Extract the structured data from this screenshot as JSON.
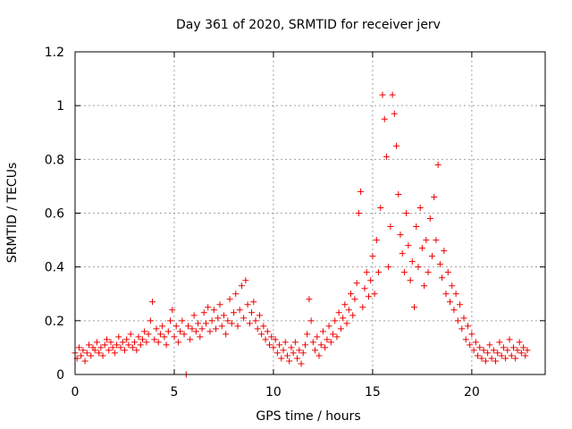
{
  "chart_data": {
    "type": "scatter",
    "title": "Day 361 of 2020, SRMTID for receiver jerv",
    "xlabel": "GPS time / hours",
    "ylabel": "SRMTID / TECUs",
    "xlim": [
      0,
      23.7
    ],
    "ylim": [
      0,
      1.2
    ],
    "x_ticks": [
      0,
      5,
      10,
      15,
      20
    ],
    "x_tick_labels": [
      "0",
      "5",
      "10",
      "15",
      "20"
    ],
    "y_ticks": [
      0,
      0.2,
      0.4,
      0.6,
      0.8,
      1.0,
      1.2
    ],
    "y_tick_labels": [
      "0",
      "0.2",
      "0.4",
      "0.6",
      "0.8",
      "1",
      "1.2"
    ],
    "grid": true,
    "marker": "+",
    "color": "#ee0000",
    "series": [
      {
        "name": "SRMTID",
        "points": [
          [
            0.0,
            0.08
          ],
          [
            0.1,
            0.06
          ],
          [
            0.2,
            0.1
          ],
          [
            0.3,
            0.07
          ],
          [
            0.4,
            0.09
          ],
          [
            0.5,
            0.05
          ],
          [
            0.6,
            0.08
          ],
          [
            0.7,
            0.11
          ],
          [
            0.8,
            0.07
          ],
          [
            0.9,
            0.1
          ],
          [
            1.0,
            0.09
          ],
          [
            1.1,
            0.12
          ],
          [
            1.2,
            0.08
          ],
          [
            1.3,
            0.1
          ],
          [
            1.4,
            0.07
          ],
          [
            1.5,
            0.11
          ],
          [
            1.6,
            0.13
          ],
          [
            1.7,
            0.09
          ],
          [
            1.8,
            0.12
          ],
          [
            1.9,
            0.1
          ],
          [
            2.0,
            0.08
          ],
          [
            2.1,
            0.11
          ],
          [
            2.2,
            0.14
          ],
          [
            2.3,
            0.1
          ],
          [
            2.4,
            0.12
          ],
          [
            2.5,
            0.09
          ],
          [
            2.6,
            0.13
          ],
          [
            2.7,
            0.11
          ],
          [
            2.8,
            0.15
          ],
          [
            2.9,
            0.1
          ],
          [
            3.0,
            0.12
          ],
          [
            3.1,
            0.09
          ],
          [
            3.2,
            0.14
          ],
          [
            3.3,
            0.11
          ],
          [
            3.4,
            0.13
          ],
          [
            3.5,
            0.16
          ],
          [
            3.6,
            0.12
          ],
          [
            3.7,
            0.15
          ],
          [
            3.8,
            0.2
          ],
          [
            3.9,
            0.27
          ],
          [
            4.0,
            0.13
          ],
          [
            4.1,
            0.17
          ],
          [
            4.2,
            0.12
          ],
          [
            4.3,
            0.15
          ],
          [
            4.4,
            0.18
          ],
          [
            4.5,
            0.14
          ],
          [
            4.6,
            0.11
          ],
          [
            4.7,
            0.16
          ],
          [
            4.8,
            0.2
          ],
          [
            4.9,
            0.24
          ],
          [
            5.0,
            0.14
          ],
          [
            5.1,
            0.18
          ],
          [
            5.2,
            0.12
          ],
          [
            5.3,
            0.16
          ],
          [
            5.4,
            0.2
          ],
          [
            5.5,
            0.15
          ],
          [
            5.6,
            0.0
          ],
          [
            5.7,
            0.18
          ],
          [
            5.8,
            0.13
          ],
          [
            5.9,
            0.17
          ],
          [
            6.0,
            0.22
          ],
          [
            6.1,
            0.16
          ],
          [
            6.2,
            0.19
          ],
          [
            6.3,
            0.14
          ],
          [
            6.4,
            0.17
          ],
          [
            6.5,
            0.23
          ],
          [
            6.6,
            0.19
          ],
          [
            6.7,
            0.25
          ],
          [
            6.8,
            0.16
          ],
          [
            6.9,
            0.2
          ],
          [
            7.0,
            0.24
          ],
          [
            7.1,
            0.17
          ],
          [
            7.2,
            0.21
          ],
          [
            7.3,
            0.26
          ],
          [
            7.4,
            0.18
          ],
          [
            7.5,
            0.22
          ],
          [
            7.6,
            0.15
          ],
          [
            7.7,
            0.2
          ],
          [
            7.8,
            0.28
          ],
          [
            7.9,
            0.19
          ],
          [
            8.0,
            0.23
          ],
          [
            8.1,
            0.3
          ],
          [
            8.2,
            0.18
          ],
          [
            8.3,
            0.24
          ],
          [
            8.4,
            0.33
          ],
          [
            8.5,
            0.21
          ],
          [
            8.6,
            0.35
          ],
          [
            8.7,
            0.26
          ],
          [
            8.8,
            0.19
          ],
          [
            8.9,
            0.23
          ],
          [
            9.0,
            0.27
          ],
          [
            9.1,
            0.2
          ],
          [
            9.2,
            0.17
          ],
          [
            9.3,
            0.22
          ],
          [
            9.4,
            0.15
          ],
          [
            9.5,
            0.18
          ],
          [
            9.6,
            0.13
          ],
          [
            9.7,
            0.16
          ],
          [
            9.8,
            0.11
          ],
          [
            9.9,
            0.14
          ],
          [
            10.0,
            0.1
          ],
          [
            10.1,
            0.13
          ],
          [
            10.2,
            0.08
          ],
          [
            10.3,
            0.11
          ],
          [
            10.4,
            0.06
          ],
          [
            10.5,
            0.09
          ],
          [
            10.6,
            0.12
          ],
          [
            10.7,
            0.07
          ],
          [
            10.8,
            0.05
          ],
          [
            10.9,
            0.1
          ],
          [
            11.0,
            0.08
          ],
          [
            11.1,
            0.12
          ],
          [
            11.2,
            0.06
          ],
          [
            11.3,
            0.09
          ],
          [
            11.4,
            0.04
          ],
          [
            11.5,
            0.08
          ],
          [
            11.6,
            0.11
          ],
          [
            11.7,
            0.15
          ],
          [
            11.8,
            0.28
          ],
          [
            11.9,
            0.2
          ],
          [
            12.0,
            0.12
          ],
          [
            12.1,
            0.09
          ],
          [
            12.2,
            0.14
          ],
          [
            12.3,
            0.07
          ],
          [
            12.4,
            0.11
          ],
          [
            12.5,
            0.16
          ],
          [
            12.6,
            0.1
          ],
          [
            12.7,
            0.13
          ],
          [
            12.8,
            0.18
          ],
          [
            12.9,
            0.12
          ],
          [
            13.0,
            0.15
          ],
          [
            13.1,
            0.2
          ],
          [
            13.2,
            0.14
          ],
          [
            13.3,
            0.23
          ],
          [
            13.4,
            0.17
          ],
          [
            13.5,
            0.21
          ],
          [
            13.6,
            0.26
          ],
          [
            13.7,
            0.19
          ],
          [
            13.8,
            0.24
          ],
          [
            13.9,
            0.3
          ],
          [
            14.0,
            0.22
          ],
          [
            14.1,
            0.28
          ],
          [
            14.2,
            0.34
          ],
          [
            14.3,
            0.6
          ],
          [
            14.4,
            0.68
          ],
          [
            14.5,
            0.25
          ],
          [
            14.6,
            0.32
          ],
          [
            14.7,
            0.38
          ],
          [
            14.8,
            0.29
          ],
          [
            14.9,
            0.35
          ],
          [
            15.0,
            0.44
          ],
          [
            15.1,
            0.3
          ],
          [
            15.2,
            0.5
          ],
          [
            15.3,
            0.38
          ],
          [
            15.4,
            0.62
          ],
          [
            15.5,
            1.04
          ],
          [
            15.6,
            0.95
          ],
          [
            15.7,
            0.81
          ],
          [
            15.8,
            0.4
          ],
          [
            15.9,
            0.55
          ],
          [
            16.0,
            1.04
          ],
          [
            16.1,
            0.97
          ],
          [
            16.2,
            0.85
          ],
          [
            16.3,
            0.67
          ],
          [
            16.4,
            0.52
          ],
          [
            16.5,
            0.45
          ],
          [
            16.6,
            0.38
          ],
          [
            16.7,
            0.6
          ],
          [
            16.8,
            0.48
          ],
          [
            16.9,
            0.35
          ],
          [
            17.0,
            0.42
          ],
          [
            17.1,
            0.25
          ],
          [
            17.2,
            0.55
          ],
          [
            17.3,
            0.4
          ],
          [
            17.4,
            0.62
          ],
          [
            17.5,
            0.47
          ],
          [
            17.6,
            0.33
          ],
          [
            17.7,
            0.5
          ],
          [
            17.8,
            0.38
          ],
          [
            17.9,
            0.58
          ],
          [
            18.0,
            0.44
          ],
          [
            18.1,
            0.66
          ],
          [
            18.2,
            0.5
          ],
          [
            18.3,
            0.78
          ],
          [
            18.4,
            0.41
          ],
          [
            18.5,
            0.36
          ],
          [
            18.6,
            0.46
          ],
          [
            18.7,
            0.3
          ],
          [
            18.8,
            0.38
          ],
          [
            18.9,
            0.27
          ],
          [
            19.0,
            0.33
          ],
          [
            19.1,
            0.24
          ],
          [
            19.2,
            0.3
          ],
          [
            19.3,
            0.2
          ],
          [
            19.4,
            0.26
          ],
          [
            19.5,
            0.17
          ],
          [
            19.6,
            0.21
          ],
          [
            19.7,
            0.13
          ],
          [
            19.8,
            0.18
          ],
          [
            19.9,
            0.11
          ],
          [
            20.0,
            0.15
          ],
          [
            20.1,
            0.09
          ],
          [
            20.2,
            0.12
          ],
          [
            20.3,
            0.07
          ],
          [
            20.4,
            0.1
          ],
          [
            20.5,
            0.06
          ],
          [
            20.6,
            0.09
          ],
          [
            20.7,
            0.05
          ],
          [
            20.8,
            0.08
          ],
          [
            20.9,
            0.11
          ],
          [
            21.0,
            0.06
          ],
          [
            21.1,
            0.09
          ],
          [
            21.2,
            0.05
          ],
          [
            21.3,
            0.08
          ],
          [
            21.4,
            0.12
          ],
          [
            21.5,
            0.07
          ],
          [
            21.6,
            0.1
          ],
          [
            21.7,
            0.06
          ],
          [
            21.8,
            0.09
          ],
          [
            21.9,
            0.13
          ],
          [
            22.0,
            0.07
          ],
          [
            22.1,
            0.1
          ],
          [
            22.2,
            0.06
          ],
          [
            22.3,
            0.09
          ],
          [
            22.4,
            0.12
          ],
          [
            22.5,
            0.08
          ],
          [
            22.6,
            0.1
          ],
          [
            22.7,
            0.07
          ],
          [
            22.8,
            0.09
          ]
        ]
      }
    ]
  }
}
